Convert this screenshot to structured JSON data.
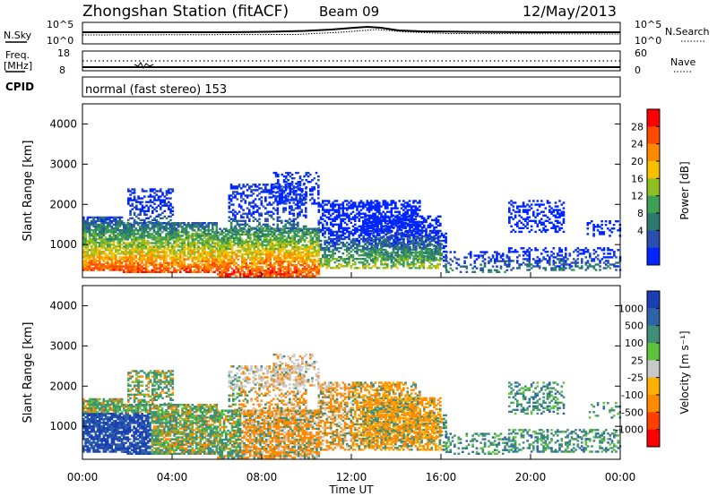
{
  "header": {
    "title": "Zhongshan Station (fitACF)",
    "beam": "Beam 09",
    "date": "12/May/2013"
  },
  "top_panels": {
    "nsky_label": "N.Sky",
    "nsearch_label": "N.Search",
    "nsky_ticks": [
      "10^5",
      "10^0"
    ],
    "nsearch_ticks": [
      "10^5",
      "10^0"
    ],
    "freq_label": "Freq.",
    "freq_unit": "[MHz]",
    "freq_ticks": [
      "18",
      "8"
    ],
    "nave_label": "Nave",
    "nave_ticks": [
      "60",
      "0"
    ],
    "cpid_label": "CPID",
    "cpid_text": "normal (fast stereo) 153"
  },
  "chart_data": [
    {
      "type": "heatmap",
      "name": "power",
      "ylabel": "Slant Range [km]",
      "y_ticks": [
        "4000",
        "3000",
        "2000",
        "1000"
      ],
      "y_tick_values": [
        4000,
        3000,
        2000,
        1000
      ],
      "ylim": [
        180,
        4500
      ],
      "xlim": [
        0,
        24
      ],
      "colorbar": {
        "label": "Power [dB]",
        "ticks": [
          "28",
          "24",
          "20",
          "16",
          "12",
          "8",
          "4"
        ],
        "colors": [
          "#ff0000",
          "#ff4a00",
          "#ff8a00",
          "#f7c000",
          "#8fbe22",
          "#3f9f55",
          "#2a7a6e",
          "#2a4fb0",
          "#0026ff"
        ]
      }
    },
    {
      "type": "heatmap",
      "name": "velocity",
      "ylabel": "Slant Range [km]",
      "y_ticks": [
        "4000",
        "3000",
        "2000",
        "1000"
      ],
      "y_tick_values": [
        4000,
        3000,
        2000,
        1000
      ],
      "ylim": [
        180,
        4500
      ],
      "xlim": [
        0,
        24
      ],
      "xlabel": "Time UT",
      "x_ticks": [
        "00:00",
        "04:00",
        "08:00",
        "12:00",
        "16:00",
        "20:00",
        "00:00"
      ],
      "x_tick_values": [
        0,
        4,
        8,
        12,
        16,
        20,
        24
      ],
      "colorbar": {
        "label": "Velocity [m s⁻¹]",
        "ticks": [
          "1000",
          "500",
          "100",
          "25",
          "-25",
          "-100",
          "-500",
          "-1000"
        ],
        "colors": [
          "#1a3fb4",
          "#2f63a8",
          "#3f8f78",
          "#5cc23a",
          "#c8c8c8",
          "#ffb000",
          "#ff8a00",
          "#ff4000",
          "#ff0000"
        ]
      }
    }
  ]
}
